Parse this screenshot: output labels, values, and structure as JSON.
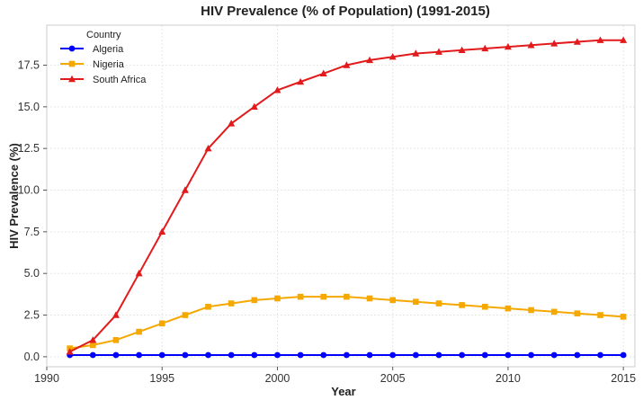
{
  "chart_data": {
    "type": "line",
    "title": "HIV Prevalence (% of Population) (1991-2015)",
    "xlabel": "Year",
    "ylabel": "HIV Prevalence (%)",
    "xlim": [
      1990,
      2015.5
    ],
    "ylim": [
      -0.6,
      19.9
    ],
    "x_ticks": [
      1990,
      1995,
      2000,
      2005,
      2010,
      2015
    ],
    "y_ticks": [
      0.0,
      2.5,
      5.0,
      7.5,
      10.0,
      12.5,
      15.0,
      17.5
    ],
    "y_tick_labels": [
      "0.0",
      "2.5",
      "5.0",
      "7.5",
      "10.0",
      "12.5",
      "15.0",
      "17.5"
    ],
    "grid": true,
    "legend": {
      "title": "Country",
      "placement": "top-left"
    },
    "x": [
      1991,
      1992,
      1993,
      1994,
      1995,
      1996,
      1997,
      1998,
      1999,
      2000,
      2001,
      2002,
      2003,
      2004,
      2005,
      2006,
      2007,
      2008,
      2009,
      2010,
      2011,
      2012,
      2013,
      2014,
      2015
    ],
    "series": [
      {
        "name": "Algeria",
        "color": "#0000ff",
        "marker": "circle",
        "values": [
          0.1,
          0.1,
          0.1,
          0.1,
          0.1,
          0.1,
          0.1,
          0.1,
          0.1,
          0.1,
          0.1,
          0.1,
          0.1,
          0.1,
          0.1,
          0.1,
          0.1,
          0.1,
          0.1,
          0.1,
          0.1,
          0.1,
          0.1,
          0.1,
          0.1
        ]
      },
      {
        "name": "Nigeria",
        "color": "#f5a800",
        "marker": "square",
        "values": [
          0.5,
          0.7,
          1.0,
          1.5,
          2.0,
          2.5,
          3.0,
          3.2,
          3.4,
          3.5,
          3.6,
          3.6,
          3.6,
          3.5,
          3.4,
          3.3,
          3.2,
          3.1,
          3.0,
          2.9,
          2.8,
          2.7,
          2.6,
          2.5,
          2.4
        ]
      },
      {
        "name": "South Africa",
        "color": "#e31a1c",
        "marker": "triangle",
        "values": [
          0.3,
          1.0,
          2.5,
          5.0,
          7.5,
          10.0,
          12.5,
          14.0,
          15.0,
          16.0,
          16.5,
          17.0,
          17.5,
          17.8,
          18.0,
          18.2,
          18.3,
          18.4,
          18.5,
          18.6,
          18.7,
          18.8,
          18.9,
          19.0,
          19.0
        ]
      }
    ]
  }
}
